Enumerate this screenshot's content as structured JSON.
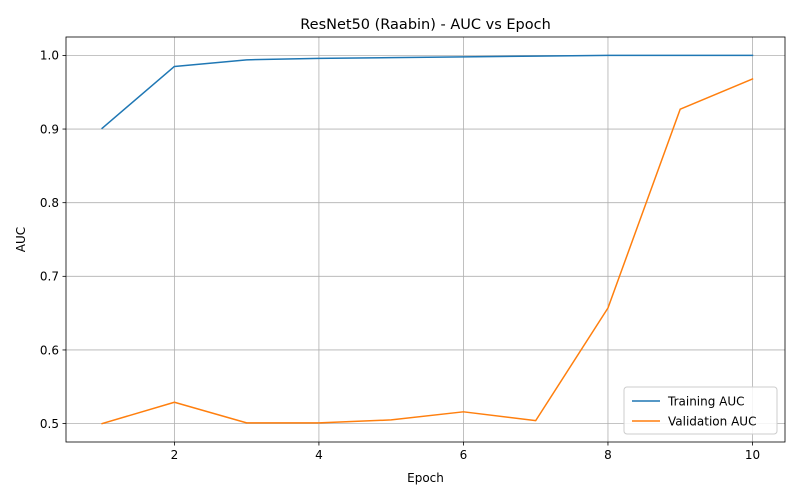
{
  "chart_data": {
    "type": "line",
    "title": "ResNet50 (Raabin) - AUC vs Epoch",
    "xlabel": "Epoch",
    "ylabel": "AUC",
    "x": [
      1,
      2,
      3,
      4,
      5,
      6,
      7,
      8,
      9,
      10
    ],
    "xlim": [
      0.5,
      10.45
    ],
    "ylim": [
      0.475,
      1.025
    ],
    "xticks": [
      2,
      4,
      6,
      8,
      10
    ],
    "yticks": [
      0.5,
      0.6,
      0.7,
      0.8,
      0.9,
      1.0
    ],
    "xtick_labels": [
      "2",
      "4",
      "6",
      "8",
      "10"
    ],
    "ytick_labels": [
      "0.5",
      "0.6",
      "0.7",
      "0.8",
      "0.9",
      "1.0"
    ],
    "grid": true,
    "legend_position": "lower-right",
    "series": [
      {
        "name": "Training AUC",
        "color": "#1f77b4",
        "values": [
          0.901,
          0.985,
          0.994,
          0.996,
          0.997,
          0.998,
          0.999,
          1.0,
          1.0,
          1.0
        ]
      },
      {
        "name": "Validation AUC",
        "color": "#ff7f0e",
        "values": [
          0.5,
          0.529,
          0.501,
          0.501,
          0.505,
          0.516,
          0.504,
          0.657,
          0.927,
          0.968
        ]
      }
    ]
  }
}
